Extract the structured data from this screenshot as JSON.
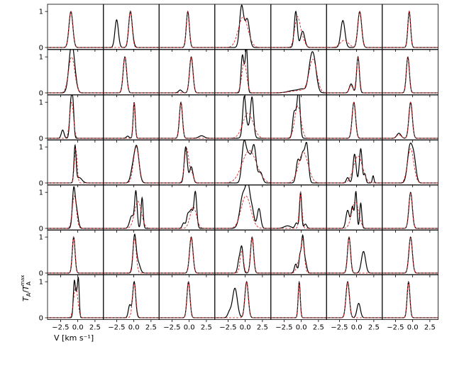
{
  "chart_data": {
    "type": "line",
    "layout": "7x7 grid of small-multiple spectra panels, shared x and y axes",
    "xlabel": "V [km s⁻¹]",
    "ylabel": "T_A/T_A^max",
    "xlim": [
      -4.4,
      3.7
    ],
    "ylim": [
      -0.05,
      1.2
    ],
    "xticks": [
      -2.5,
      0.0,
      2.5
    ],
    "xtick_labels": [
      "−2.5",
      "0.0",
      "2.5"
    ],
    "yticks": [
      0,
      1
    ],
    "ytick_labels": [
      "0",
      "1"
    ],
    "series_styles": {
      "observed": {
        "color": "#000000",
        "dash": "solid"
      },
      "model": {
        "color": "#d62728",
        "dash": "dashed"
      }
    },
    "panels": [
      {
        "row": 0,
        "col": 0,
        "obs": [
          [
            -1.0,
            1.0,
            0.28
          ]
        ],
        "model": [
          [
            -1.0,
            1.0,
            0.28
          ]
        ]
      },
      {
        "row": 0,
        "col": 1,
        "obs": [
          [
            -0.5,
            1.0,
            0.25
          ],
          [
            -2.5,
            0.77,
            0.25
          ],
          [
            -0.05,
            0.07,
            0.2
          ]
        ],
        "model": [
          [
            -0.5,
            1.0,
            0.25
          ]
        ]
      },
      {
        "row": 0,
        "col": 2,
        "obs": [
          [
            -0.2,
            1.0,
            0.22
          ]
        ],
        "model": [
          [
            -0.2,
            1.0,
            0.22
          ]
        ]
      },
      {
        "row": 0,
        "col": 3,
        "obs": [
          [
            -0.55,
            1.0,
            0.28
          ],
          [
            0.35,
            0.62,
            0.3
          ],
          [
            -0.1,
            0.3,
            0.4
          ]
        ],
        "model": [
          [
            -0.3,
            0.85,
            0.7
          ]
        ]
      },
      {
        "row": 0,
        "col": 4,
        "obs": [
          [
            -0.8,
            1.0,
            0.22
          ],
          [
            0.2,
            0.45,
            0.3
          ]
        ],
        "model": [
          [
            -0.6,
            0.8,
            0.38
          ],
          [
            0.1,
            0.25,
            0.4
          ]
        ]
      },
      {
        "row": 0,
        "col": 5,
        "obs": [
          [
            -2.0,
            0.75,
            0.3
          ],
          [
            0.45,
            1.0,
            0.28
          ]
        ],
        "model": [
          [
            0.45,
            1.0,
            0.28
          ],
          [
            -1.8,
            0.2,
            0.6
          ]
        ]
      },
      {
        "row": 0,
        "col": 6,
        "obs": [
          [
            -0.5,
            1.0,
            0.2
          ]
        ],
        "model": [
          [
            -0.5,
            1.0,
            0.2
          ]
        ]
      },
      {
        "row": 1,
        "col": 0,
        "obs": [
          [
            -1.0,
            1.0,
            0.35
          ],
          [
            -0.6,
            0.6,
            0.35
          ]
        ],
        "model": [
          [
            -0.9,
            1.0,
            0.45
          ]
        ]
      },
      {
        "row": 1,
        "col": 1,
        "obs": [
          [
            -1.3,
            1.0,
            0.25
          ]
        ],
        "model": [
          [
            -1.3,
            1.0,
            0.25
          ]
        ]
      },
      {
        "row": 1,
        "col": 2,
        "obs": [
          [
            0.3,
            1.0,
            0.25
          ],
          [
            -1.3,
            0.08,
            0.25
          ]
        ],
        "model": [
          [
            0.3,
            1.0,
            0.25
          ]
        ]
      },
      {
        "row": 1,
        "col": 3,
        "obs": [
          [
            -0.45,
            0.82,
            0.18
          ],
          [
            0.2,
            1.0,
            0.15
          ],
          [
            -0.1,
            0.55,
            0.25
          ]
        ],
        "model": [
          [
            -0.15,
            0.85,
            0.35
          ]
        ]
      },
      {
        "row": 1,
        "col": 4,
        "obs": [
          [
            1.8,
            0.9,
            0.4
          ],
          [
            1.3,
            0.5,
            0.35
          ],
          [
            -1.0,
            0.07,
            0.9
          ],
          [
            0.2,
            0.08,
            0.5
          ]
        ],
        "model": [
          [
            1.7,
            0.9,
            0.55
          ],
          [
            0.0,
            0.07,
            1.4
          ]
        ]
      },
      {
        "row": 1,
        "col": 5,
        "obs": [
          [
            0.2,
            1.0,
            0.2
          ],
          [
            -0.8,
            0.25,
            0.25
          ]
        ],
        "model": [
          [
            0.2,
            1.0,
            0.22
          ],
          [
            -0.8,
            0.2,
            0.28
          ]
        ]
      },
      {
        "row": 1,
        "col": 6,
        "obs": [
          [
            -0.7,
            1.0,
            0.22
          ]
        ],
        "model": [
          [
            -0.7,
            1.0,
            0.22
          ]
        ]
      },
      {
        "row": 2,
        "col": 0,
        "obs": [
          [
            -1.0,
            1.0,
            0.18
          ],
          [
            -0.7,
            0.85,
            0.15
          ],
          [
            -2.2,
            0.23,
            0.2
          ]
        ],
        "model": [
          [
            -0.9,
            1.0,
            0.28
          ]
        ]
      },
      {
        "row": 2,
        "col": 1,
        "obs": [
          [
            0.05,
            1.0,
            0.15
          ],
          [
            -0.9,
            0.06,
            0.2
          ]
        ],
        "model": [
          [
            0.05,
            1.0,
            0.15
          ]
        ]
      },
      {
        "row": 2,
        "col": 2,
        "obs": [
          [
            -1.2,
            1.0,
            0.22
          ],
          [
            1.8,
            0.07,
            0.4
          ]
        ],
        "model": [
          [
            -1.2,
            1.0,
            0.22
          ]
        ]
      },
      {
        "row": 2,
        "col": 3,
        "obs": [
          [
            -0.15,
            1.0,
            0.22
          ],
          [
            1.0,
            1.0,
            0.22
          ],
          [
            0.4,
            0.3,
            0.5
          ]
        ],
        "model": [
          [
            0.4,
            0.7,
            0.75
          ]
        ]
      },
      {
        "row": 2,
        "col": 4,
        "obs": [
          [
            -0.35,
            1.0,
            0.2
          ],
          [
            -1.1,
            0.45,
            0.2
          ],
          [
            -0.7,
            0.6,
            0.3
          ]
        ],
        "model": [
          [
            -0.5,
            0.9,
            0.45
          ]
        ]
      },
      {
        "row": 2,
        "col": 5,
        "obs": [
          [
            -0.4,
            1.0,
            0.25
          ]
        ],
        "model": [
          [
            -0.4,
            1.0,
            0.25
          ]
        ]
      },
      {
        "row": 2,
        "col": 6,
        "obs": [
          [
            -0.3,
            1.0,
            0.25
          ],
          [
            -2.0,
            0.14,
            0.3
          ]
        ],
        "model": [
          [
            -0.3,
            1.0,
            0.25
          ],
          [
            -2.0,
            0.1,
            0.35
          ]
        ]
      },
      {
        "row": 3,
        "col": 0,
        "obs": [
          [
            -0.4,
            1.0,
            0.15
          ],
          [
            0.2,
            0.15,
            0.4
          ]
        ],
        "model": [
          [
            -0.3,
            0.95,
            0.2
          ]
        ]
      },
      {
        "row": 3,
        "col": 1,
        "obs": [
          [
            0.4,
            1.0,
            0.35
          ],
          [
            -0.2,
            0.3,
            0.3
          ]
        ],
        "model": [
          [
            0.35,
            1.0,
            0.4
          ]
        ]
      },
      {
        "row": 3,
        "col": 2,
        "obs": [
          [
            -0.5,
            1.0,
            0.22
          ],
          [
            0.3,
            0.45,
            0.25
          ]
        ],
        "model": [
          [
            -0.4,
            0.95,
            0.3
          ],
          [
            0.3,
            0.3,
            0.3
          ]
        ]
      },
      {
        "row": 3,
        "col": 3,
        "obs": [
          [
            -0.2,
            1.0,
            0.3
          ],
          [
            1.3,
            0.95,
            0.3
          ],
          [
            0.5,
            0.75,
            0.4
          ],
          [
            2.2,
            0.3,
            0.3
          ]
        ],
        "model": [
          [
            0.6,
            0.9,
            1.05
          ]
        ]
      },
      {
        "row": 3,
        "col": 4,
        "obs": [
          [
            0.8,
            1.0,
            0.25
          ],
          [
            -0.5,
            0.6,
            0.25
          ],
          [
            0.2,
            0.8,
            0.3
          ]
        ],
        "model": [
          [
            0.3,
            0.85,
            0.7
          ]
        ]
      },
      {
        "row": 3,
        "col": 5,
        "obs": [
          [
            -0.3,
            0.8,
            0.22
          ],
          [
            0.6,
            0.95,
            0.2
          ],
          [
            1.2,
            0.25,
            0.15
          ],
          [
            2.4,
            0.2,
            0.12
          ],
          [
            -1.3,
            0.15,
            0.2
          ]
        ],
        "model": [
          [
            0.2,
            0.75,
            0.65
          ]
        ]
      },
      {
        "row": 3,
        "col": 6,
        "obs": [
          [
            -0.4,
            1.0,
            0.35
          ],
          [
            0.2,
            0.6,
            0.3
          ]
        ],
        "model": [
          [
            -0.3,
            0.95,
            0.45
          ]
        ]
      },
      {
        "row": 4,
        "col": 0,
        "obs": [
          [
            -0.6,
            1.0,
            0.2
          ],
          [
            -0.2,
            0.5,
            0.25
          ]
        ],
        "model": [
          [
            -0.5,
            0.9,
            0.3
          ]
        ]
      },
      {
        "row": 4,
        "col": 1,
        "obs": [
          [
            0.3,
            1.0,
            0.18
          ],
          [
            1.2,
            0.85,
            0.15
          ],
          [
            -0.3,
            0.35,
            0.3
          ]
        ],
        "model": [
          [
            0.6,
            0.75,
            0.5
          ]
        ]
      },
      {
        "row": 4,
        "col": 2,
        "obs": [
          [
            0.9,
            1.0,
            0.2
          ],
          [
            -0.2,
            0.35,
            0.2
          ],
          [
            0.3,
            0.5,
            0.25
          ],
          [
            -0.8,
            0.15,
            0.2
          ]
        ],
        "model": [
          [
            0.6,
            0.6,
            0.45
          ]
        ]
      },
      {
        "row": 4,
        "col": 3,
        "obs": [
          [
            -0.3,
            0.95,
            0.45
          ],
          [
            0.4,
            0.95,
            0.3
          ],
          [
            1.0,
            0.5,
            0.3
          ],
          [
            2.0,
            0.55,
            0.25
          ]
        ],
        "model": [
          [
            0.1,
            0.9,
            0.7
          ]
        ]
      },
      {
        "row": 4,
        "col": 4,
        "obs": [
          [
            -0.1,
            1.0,
            0.15
          ],
          [
            0.6,
            0.12,
            0.2
          ],
          [
            -2.0,
            0.07,
            0.5
          ],
          [
            -0.7,
            0.15,
            0.2
          ]
        ],
        "model": [
          [
            -0.1,
            1.0,
            0.2
          ]
        ]
      },
      {
        "row": 4,
        "col": 5,
        "obs": [
          [
            -0.1,
            1.0,
            0.15
          ],
          [
            0.6,
            0.7,
            0.15
          ],
          [
            -1.3,
            0.5,
            0.25
          ],
          [
            -0.6,
            0.6,
            0.2
          ]
        ],
        "model": [
          [
            -0.2,
            0.75,
            0.5
          ]
        ]
      },
      {
        "row": 4,
        "col": 6,
        "obs": [
          [
            -0.3,
            1.0,
            0.25
          ]
        ],
        "model": [
          [
            -0.3,
            1.0,
            0.25
          ]
        ]
      },
      {
        "row": 5,
        "col": 0,
        "obs": [
          [
            -0.6,
            1.0,
            0.2
          ]
        ],
        "model": [
          [
            -0.6,
            1.0,
            0.2
          ]
        ]
      },
      {
        "row": 5,
        "col": 1,
        "obs": [
          [
            0.1,
            1.0,
            0.22
          ],
          [
            0.6,
            0.3,
            0.3
          ]
        ],
        "model": [
          [
            0.1,
            0.95,
            0.25
          ]
        ]
      },
      {
        "row": 5,
        "col": 2,
        "obs": [
          [
            0.3,
            1.0,
            0.25
          ]
        ],
        "model": [
          [
            0.3,
            1.0,
            0.25
          ]
        ]
      },
      {
        "row": 5,
        "col": 3,
        "obs": [
          [
            -0.5,
            0.7,
            0.2
          ],
          [
            1.0,
            1.0,
            0.22
          ],
          [
            -0.9,
            0.35,
            0.2
          ]
        ],
        "model": [
          [
            1.0,
            1.0,
            0.22
          ],
          [
            -0.5,
            0.6,
            0.25
          ]
        ]
      },
      {
        "row": 5,
        "col": 4,
        "obs": [
          [
            0.2,
            1.0,
            0.18
          ],
          [
            -0.2,
            0.45,
            0.15
          ],
          [
            -0.8,
            0.25,
            0.2
          ],
          [
            0.6,
            0.3,
            0.2
          ]
        ],
        "model": [
          [
            0.2,
            0.9,
            0.25
          ],
          [
            -0.4,
            0.3,
            0.3
          ]
        ]
      },
      {
        "row": 5,
        "col": 5,
        "obs": [
          [
            -1.1,
            1.0,
            0.22
          ],
          [
            1.0,
            0.6,
            0.3
          ]
        ],
        "model": [
          [
            -1.1,
            1.0,
            0.22
          ]
        ]
      },
      {
        "row": 5,
        "col": 6,
        "obs": [
          [
            -0.3,
            1.0,
            0.25
          ]
        ],
        "model": [
          [
            -0.3,
            1.0,
            0.25
          ]
        ]
      },
      {
        "row": 6,
        "col": 0,
        "obs": [
          [
            -0.5,
            1.0,
            0.15
          ],
          [
            0.1,
            0.95,
            0.12
          ],
          [
            -0.15,
            0.6,
            0.15
          ]
        ],
        "model": [
          [
            -0.3,
            0.85,
            0.3
          ]
        ]
      },
      {
        "row": 6,
        "col": 1,
        "obs": [
          [
            0.05,
            1.0,
            0.22
          ],
          [
            -0.6,
            0.35,
            0.2
          ]
        ],
        "model": [
          [
            0.05,
            0.95,
            0.25
          ]
        ]
      },
      {
        "row": 6,
        "col": 2,
        "obs": [
          [
            -0.1,
            1.0,
            0.22
          ]
        ],
        "model": [
          [
            -0.1,
            1.0,
            0.22
          ]
        ]
      },
      {
        "row": 6,
        "col": 3,
        "obs": [
          [
            -1.5,
            0.82,
            0.35
          ],
          [
            0.2,
            1.0,
            0.25
          ],
          [
            -2.3,
            0.15,
            0.25
          ]
        ],
        "model": [
          [
            0.2,
            1.0,
            0.25
          ]
        ]
      },
      {
        "row": 6,
        "col": 4,
        "obs": [
          [
            -0.3,
            1.0,
            0.15
          ]
        ],
        "model": [
          [
            -0.3,
            1.0,
            0.15
          ]
        ]
      },
      {
        "row": 6,
        "col": 5,
        "obs": [
          [
            -1.3,
            1.0,
            0.25
          ],
          [
            0.3,
            0.4,
            0.25
          ]
        ],
        "model": [
          [
            -1.3,
            1.0,
            0.25
          ]
        ]
      },
      {
        "row": 6,
        "col": 6,
        "obs": [
          [
            -0.6,
            1.0,
            0.2
          ]
        ],
        "model": [
          [
            -0.6,
            1.0,
            0.2
          ]
        ]
      }
    ]
  }
}
